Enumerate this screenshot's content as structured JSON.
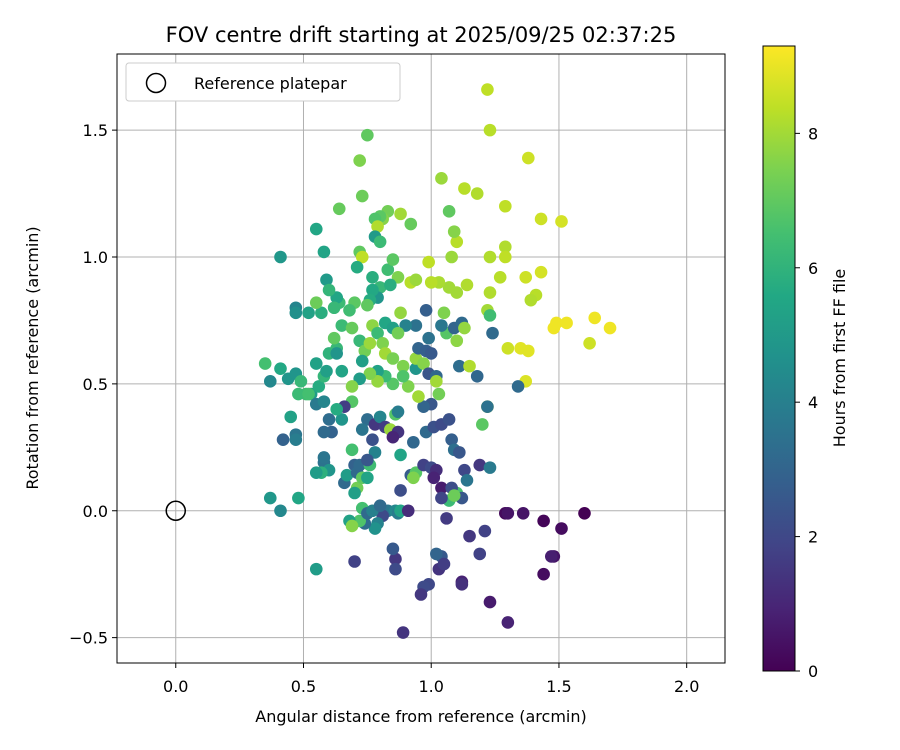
{
  "chart_data": {
    "type": "scatter",
    "title": "FOV centre drift starting at 2025/09/25 02:37:25",
    "xlabel": "Angular distance from reference (arcmin)",
    "ylabel": "Rotation from reference (arcmin)",
    "xlim": [
      -0.23,
      2.15
    ],
    "ylim": [
      -0.6,
      1.8
    ],
    "xticks": [
      0.0,
      0.5,
      1.0,
      1.5,
      2.0
    ],
    "xtick_labels": [
      "0.0",
      "0.5",
      "1.0",
      "1.5",
      "2.0"
    ],
    "yticks": [
      -0.5,
      0.0,
      0.5,
      1.0,
      1.5
    ],
    "ytick_labels": [
      "−0.5",
      "0.0",
      "0.5",
      "1.0",
      "1.5"
    ],
    "grid": true,
    "legend": {
      "position": "top-left",
      "entries": [
        {
          "label": "Reference platepar",
          "marker": "open-circle",
          "x": 0.0,
          "y": 0.0
        }
      ]
    },
    "colorbar": {
      "label": "Hours from first FF file",
      "range": [
        0,
        9.3
      ],
      "ticks": [
        0,
        2,
        4,
        6,
        8
      ],
      "tick_labels": [
        "0",
        "2",
        "4",
        "6",
        "8"
      ],
      "colormap": "viridis"
    },
    "points": [
      [
        1.22,
        1.66,
        8.4
      ],
      [
        1.23,
        1.5,
        8.3
      ],
      [
        1.38,
        1.39,
        8.6
      ],
      [
        1.13,
        1.27,
        8.3
      ],
      [
        1.18,
        1.25,
        8.2
      ],
      [
        1.29,
        1.2,
        8.4
      ],
      [
        1.43,
        1.15,
        8.6
      ],
      [
        1.51,
        1.14,
        8.7
      ],
      [
        1.29,
        1.04,
        8.2
      ],
      [
        1.23,
        1.0,
        8.2
      ],
      [
        1.29,
        1.0,
        8.4
      ],
      [
        1.37,
        0.92,
        8.6
      ],
      [
        1.43,
        0.94,
        8.7
      ],
      [
        1.27,
        0.92,
        8.3
      ],
      [
        1.41,
        0.85,
        8.3
      ],
      [
        1.39,
        0.83,
        8.2
      ],
      [
        1.23,
        0.86,
        8.2
      ],
      [
        1.14,
        0.89,
        8.2
      ],
      [
        1.1,
        0.86,
        8.0
      ],
      [
        1.07,
        0.88,
        8.0
      ],
      [
        1.03,
        0.9,
        8.1
      ],
      [
        1.0,
        0.9,
        8.3
      ],
      [
        0.99,
        0.98,
        8.4
      ],
      [
        1.1,
        1.06,
        8.3
      ],
      [
        1.09,
        1.1,
        7.6
      ],
      [
        1.04,
        1.31,
        7.9
      ],
      [
        1.07,
        1.18,
        7.0
      ],
      [
        1.08,
        1.0,
        7.9
      ],
      [
        1.22,
        0.79,
        8.0
      ],
      [
        1.23,
        0.77,
        6.4
      ],
      [
        1.24,
        0.7,
        3.2
      ],
      [
        1.3,
        0.64,
        8.6
      ],
      [
        1.35,
        0.64,
        8.9
      ],
      [
        1.38,
        0.63,
        8.9
      ],
      [
        1.37,
        0.51,
        8.8
      ],
      [
        1.34,
        0.49,
        3.2
      ],
      [
        1.48,
        0.72,
        9.1
      ],
      [
        1.49,
        0.74,
        9.1
      ],
      [
        1.53,
        0.74,
        9.1
      ],
      [
        1.64,
        0.76,
        9.1
      ],
      [
        1.7,
        0.72,
        9.1
      ],
      [
        1.62,
        0.66,
        8.6
      ],
      [
        1.22,
        0.41,
        8.5
      ],
      [
        1.22,
        0.41,
        3.5
      ],
      [
        1.18,
        0.53,
        3.1
      ],
      [
        1.11,
        0.57,
        3.3
      ],
      [
        1.15,
        0.57,
        8.2
      ],
      [
        1.1,
        0.67,
        7.7
      ],
      [
        1.06,
        0.7,
        6.8
      ],
      [
        1.04,
        0.73,
        3.7
      ],
      [
        1.09,
        0.72,
        3.0
      ],
      [
        1.12,
        0.74,
        3.2
      ],
      [
        1.13,
        0.72,
        7.8
      ],
      [
        1.05,
        0.78,
        7.5
      ],
      [
        0.98,
        0.79,
        2.8
      ],
      [
        0.94,
        0.73,
        3.5
      ],
      [
        0.9,
        0.73,
        4.1
      ],
      [
        0.88,
        0.78,
        7.8
      ],
      [
        0.92,
        0.9,
        8.3
      ],
      [
        0.94,
        0.91,
        7.9
      ],
      [
        0.87,
        0.92,
        7.5
      ],
      [
        0.88,
        1.17,
        8.0
      ],
      [
        0.92,
        1.13,
        7.1
      ],
      [
        0.83,
        1.18,
        7.3
      ],
      [
        0.81,
        1.15,
        7.6
      ],
      [
        0.8,
        1.16,
        6.9
      ],
      [
        0.78,
        1.15,
        6.7
      ],
      [
        0.79,
        1.12,
        8.2
      ],
      [
        0.78,
        1.08,
        5.0
      ],
      [
        0.8,
        1.06,
        6.3
      ],
      [
        0.72,
        1.02,
        7.0
      ],
      [
        0.73,
        1.0,
        8.4
      ],
      [
        0.71,
        0.96,
        5.7
      ],
      [
        0.77,
        0.92,
        5.8
      ],
      [
        0.8,
        0.88,
        6.2
      ],
      [
        0.83,
        0.95,
        6.4
      ],
      [
        0.85,
        0.99,
        6.9
      ],
      [
        0.84,
        0.89,
        5.8
      ],
      [
        0.79,
        0.84,
        4.8
      ],
      [
        0.77,
        0.87,
        5.6
      ],
      [
        0.76,
        0.83,
        5.7
      ],
      [
        0.75,
        0.81,
        7.0
      ],
      [
        0.7,
        0.82,
        6.9
      ],
      [
        0.68,
        0.79,
        6.4
      ],
      [
        0.64,
        0.82,
        6.3
      ],
      [
        0.63,
        0.84,
        5.5
      ],
      [
        0.62,
        0.8,
        6.2
      ],
      [
        0.57,
        0.78,
        5.8
      ],
      [
        0.55,
        0.82,
        7.2
      ],
      [
        0.52,
        0.78,
        5.3
      ],
      [
        0.47,
        0.8,
        4.2
      ],
      [
        0.47,
        0.78,
        4.6
      ],
      [
        0.41,
        1.0,
        4.9
      ],
      [
        0.55,
        1.11,
        5.5
      ],
      [
        0.58,
        1.02,
        5.4
      ],
      [
        0.59,
        0.91,
        5.0
      ],
      [
        0.6,
        0.87,
        6.1
      ],
      [
        0.64,
        1.19,
        7.1
      ],
      [
        0.72,
        1.38,
        7.5
      ],
      [
        0.73,
        1.24,
        7.2
      ],
      [
        0.75,
        1.48,
        7.0
      ],
      [
        0.35,
        0.58,
        6.5
      ],
      [
        0.37,
        0.51,
        4.3
      ],
      [
        0.41,
        0.56,
        5.6
      ],
      [
        0.44,
        0.52,
        4.8
      ],
      [
        0.47,
        0.54,
        4.8
      ],
      [
        0.49,
        0.51,
        6.2
      ],
      [
        0.51,
        0.46,
        6.4
      ],
      [
        0.53,
        0.46,
        5.1
      ],
      [
        0.55,
        0.42,
        3.8
      ],
      [
        0.58,
        0.43,
        4.2
      ],
      [
        0.56,
        0.49,
        5.7
      ],
      [
        0.55,
        0.58,
        5.3
      ],
      [
        0.58,
        0.53,
        6.1
      ],
      [
        0.59,
        0.55,
        5.2
      ],
      [
        0.6,
        0.62,
        6.0
      ],
      [
        0.63,
        0.64,
        6.2
      ],
      [
        0.62,
        0.68,
        7.0
      ],
      [
        0.63,
        0.62,
        4.8
      ],
      [
        0.65,
        0.55,
        5.4
      ],
      [
        0.65,
        0.73,
        6.3
      ],
      [
        0.69,
        0.72,
        7.1
      ],
      [
        0.72,
        0.67,
        6.2
      ],
      [
        0.74,
        0.63,
        7.3
      ],
      [
        0.76,
        0.66,
        7.9
      ],
      [
        0.77,
        0.73,
        7.7
      ],
      [
        0.79,
        0.7,
        6.3
      ],
      [
        0.82,
        0.74,
        5.5
      ],
      [
        0.85,
        0.72,
        5.2
      ],
      [
        0.87,
        0.7,
        7.3
      ],
      [
        0.81,
        0.66,
        7.5
      ],
      [
        0.82,
        0.62,
        8.0
      ],
      [
        0.85,
        0.6,
        7.4
      ],
      [
        0.89,
        0.57,
        7.5
      ],
      [
        0.94,
        0.56,
        4.8
      ],
      [
        0.94,
        0.6,
        7.8
      ],
      [
        0.95,
        0.64,
        3.0
      ],
      [
        0.98,
        0.63,
        2.8
      ],
      [
        0.99,
        0.68,
        3.5
      ],
      [
        1.0,
        0.62,
        2.6
      ],
      [
        0.97,
        0.58,
        7.6
      ],
      [
        0.99,
        0.54,
        2.4
      ],
      [
        1.02,
        0.53,
        3.1
      ],
      [
        1.02,
        0.51,
        8.0
      ],
      [
        1.03,
        0.46,
        7.3
      ],
      [
        1.0,
        0.42,
        2.5
      ],
      [
        0.97,
        0.41,
        3.0
      ],
      [
        0.95,
        0.45,
        8.0
      ],
      [
        0.91,
        0.49,
        7.5
      ],
      [
        0.89,
        0.53,
        6.7
      ],
      [
        0.85,
        0.5,
        6.8
      ],
      [
        0.82,
        0.53,
        6.3
      ],
      [
        0.79,
        0.55,
        5.3
      ],
      [
        0.79,
        0.51,
        7.8
      ],
      [
        0.76,
        0.54,
        7.5
      ],
      [
        0.73,
        0.59,
        5.2
      ],
      [
        0.72,
        0.52,
        5.1
      ],
      [
        0.69,
        0.49,
        7.6
      ],
      [
        0.69,
        0.43,
        6.8
      ],
      [
        0.66,
        0.41,
        1.7
      ],
      [
        0.65,
        0.36,
        4.8
      ],
      [
        0.63,
        0.4,
        5.7
      ],
      [
        0.61,
        0.31,
        2.9
      ],
      [
        0.58,
        0.31,
        3.2
      ],
      [
        0.6,
        0.36,
        3.3
      ],
      [
        0.47,
        0.3,
        3.6
      ],
      [
        0.47,
        0.28,
        3.9
      ],
      [
        0.42,
        0.28,
        2.9
      ],
      [
        0.45,
        0.37,
        5.3
      ],
      [
        0.48,
        0.46,
        6.3
      ],
      [
        0.52,
        0.46,
        6.5
      ],
      [
        0.75,
        0.36,
        3.3
      ],
      [
        0.73,
        0.32,
        3.6
      ],
      [
        0.77,
        0.28,
        2.3
      ],
      [
        0.78,
        0.34,
        1.5
      ],
      [
        0.8,
        0.37,
        4.2
      ],
      [
        0.82,
        0.33,
        1.7
      ],
      [
        0.84,
        0.32,
        7.9
      ],
      [
        0.86,
        0.38,
        6.8
      ],
      [
        0.87,
        0.39,
        3.9
      ],
      [
        0.87,
        0.31,
        1.4
      ],
      [
        0.85,
        0.29,
        1.0
      ],
      [
        0.88,
        0.22,
        5.4
      ],
      [
        0.93,
        0.27,
        3.1
      ],
      [
        0.98,
        0.31,
        3.2
      ],
      [
        1.01,
        0.33,
        2.3
      ],
      [
        1.04,
        0.34,
        2.1
      ],
      [
        1.07,
        0.36,
        2.3
      ],
      [
        1.08,
        0.28,
        2.8
      ],
      [
        1.09,
        0.24,
        3.4
      ],
      [
        1.11,
        0.23,
        2.5
      ],
      [
        1.13,
        0.16,
        2.0
      ],
      [
        1.14,
        0.12,
        3.6
      ],
      [
        1.19,
        0.18,
        1.5
      ],
      [
        1.23,
        0.17,
        3.8
      ],
      [
        1.2,
        0.34,
        6.9
      ],
      [
        1.1,
        0.07,
        6.6
      ],
      [
        1.07,
        0.04,
        6.3
      ],
      [
        1.12,
        0.05,
        2.5
      ],
      [
        1.15,
        -0.1,
        1.5
      ],
      [
        1.19,
        -0.17,
        1.8
      ],
      [
        1.21,
        -0.08,
        1.8
      ],
      [
        1.29,
        -0.01,
        0.2
      ],
      [
        1.3,
        -0.01,
        0.5
      ],
      [
        1.23,
        -0.36,
        0.7
      ],
      [
        1.3,
        -0.44,
        0.9
      ],
      [
        1.36,
        -0.01,
        0.5
      ],
      [
        1.44,
        -0.04,
        0.1
      ],
      [
        1.48,
        -0.18,
        0.5
      ],
      [
        1.47,
        -0.18,
        0.8
      ],
      [
        1.44,
        -0.25,
        0.3
      ],
      [
        1.51,
        -0.07,
        0.3
      ],
      [
        1.6,
        -0.01,
        0.0
      ],
      [
        1.12,
        -0.28,
        0.9
      ],
      [
        1.12,
        -0.29,
        1.3
      ],
      [
        1.03,
        -0.23,
        1.4
      ],
      [
        1.04,
        -0.18,
        2.6
      ],
      [
        1.05,
        -0.21,
        1.7
      ],
      [
        1.06,
        -0.03,
        1.6
      ],
      [
        1.02,
        -0.17,
        3.0
      ],
      [
        0.99,
        -0.29,
        2.0
      ],
      [
        0.97,
        -0.3,
        2.1
      ],
      [
        0.96,
        -0.33,
        1.5
      ],
      [
        0.89,
        -0.48,
        1.4
      ],
      [
        0.86,
        -0.19,
        1.5
      ],
      [
        0.86,
        -0.23,
        2.1
      ],
      [
        0.85,
        -0.15,
        2.6
      ],
      [
        0.83,
        0.0,
        3.7
      ],
      [
        0.81,
        -0.02,
        2.1
      ],
      [
        0.79,
        -0.05,
        4.1
      ],
      [
        0.78,
        -0.07,
        4.7
      ],
      [
        0.74,
        -0.05,
        3.3
      ],
      [
        0.72,
        -0.04,
        6.7
      ],
      [
        0.68,
        -0.04,
        5.3
      ],
      [
        0.69,
        -0.06,
        7.6
      ],
      [
        0.7,
        -0.2,
        1.8
      ],
      [
        0.73,
        0.01,
        6.5
      ],
      [
        0.75,
        -0.01,
        3.2
      ],
      [
        0.77,
        0.0,
        4.0
      ],
      [
        0.8,
        0.02,
        3.2
      ],
      [
        0.86,
        0.0,
        4.3
      ],
      [
        0.87,
        -0.01,
        3.9
      ],
      [
        0.88,
        0.08,
        2.2
      ],
      [
        0.88,
        0.0,
        5.4
      ],
      [
        0.92,
        0.14,
        2.7
      ],
      [
        0.94,
        0.15,
        6.8
      ],
      [
        0.93,
        0.13,
        7.5
      ],
      [
        0.97,
        0.18,
        1.8
      ],
      [
        1.0,
        0.17,
        2.1
      ],
      [
        1.02,
        0.16,
        1.2
      ],
      [
        1.01,
        0.13,
        0.9
      ],
      [
        1.04,
        0.09,
        0.7
      ],
      [
        1.04,
        0.05,
        1.9
      ],
      [
        1.08,
        0.09,
        2.2
      ],
      [
        1.09,
        0.06,
        7.2
      ],
      [
        0.91,
        0.0,
        1.2
      ],
      [
        0.71,
        0.09,
        7.3
      ],
      [
        0.7,
        0.07,
        5.2
      ],
      [
        0.7,
        0.18,
        2.9
      ],
      [
        0.66,
        0.11,
        3.2
      ],
      [
        0.67,
        0.14,
        5.1
      ],
      [
        0.69,
        0.24,
        6.5
      ],
      [
        0.71,
        0.15,
        3.2
      ],
      [
        0.72,
        0.18,
        3.2
      ],
      [
        0.73,
        0.13,
        7.0
      ],
      [
        0.75,
        0.13,
        5.4
      ],
      [
        0.76,
        0.18,
        6.4
      ],
      [
        0.78,
        0.23,
        4.1
      ],
      [
        0.75,
        0.2,
        2.5
      ],
      [
        0.58,
        0.19,
        3.5
      ],
      [
        0.58,
        0.21,
        3.6
      ],
      [
        0.6,
        0.16,
        4.8
      ],
      [
        0.57,
        0.15,
        5.9
      ],
      [
        0.55,
        0.15,
        5.1
      ],
      [
        0.48,
        0.05,
        5.5
      ],
      [
        0.41,
        0.0,
        4.3
      ],
      [
        0.37,
        0.05,
        4.9
      ],
      [
        0.55,
        -0.23,
        5.1
      ]
    ]
  }
}
